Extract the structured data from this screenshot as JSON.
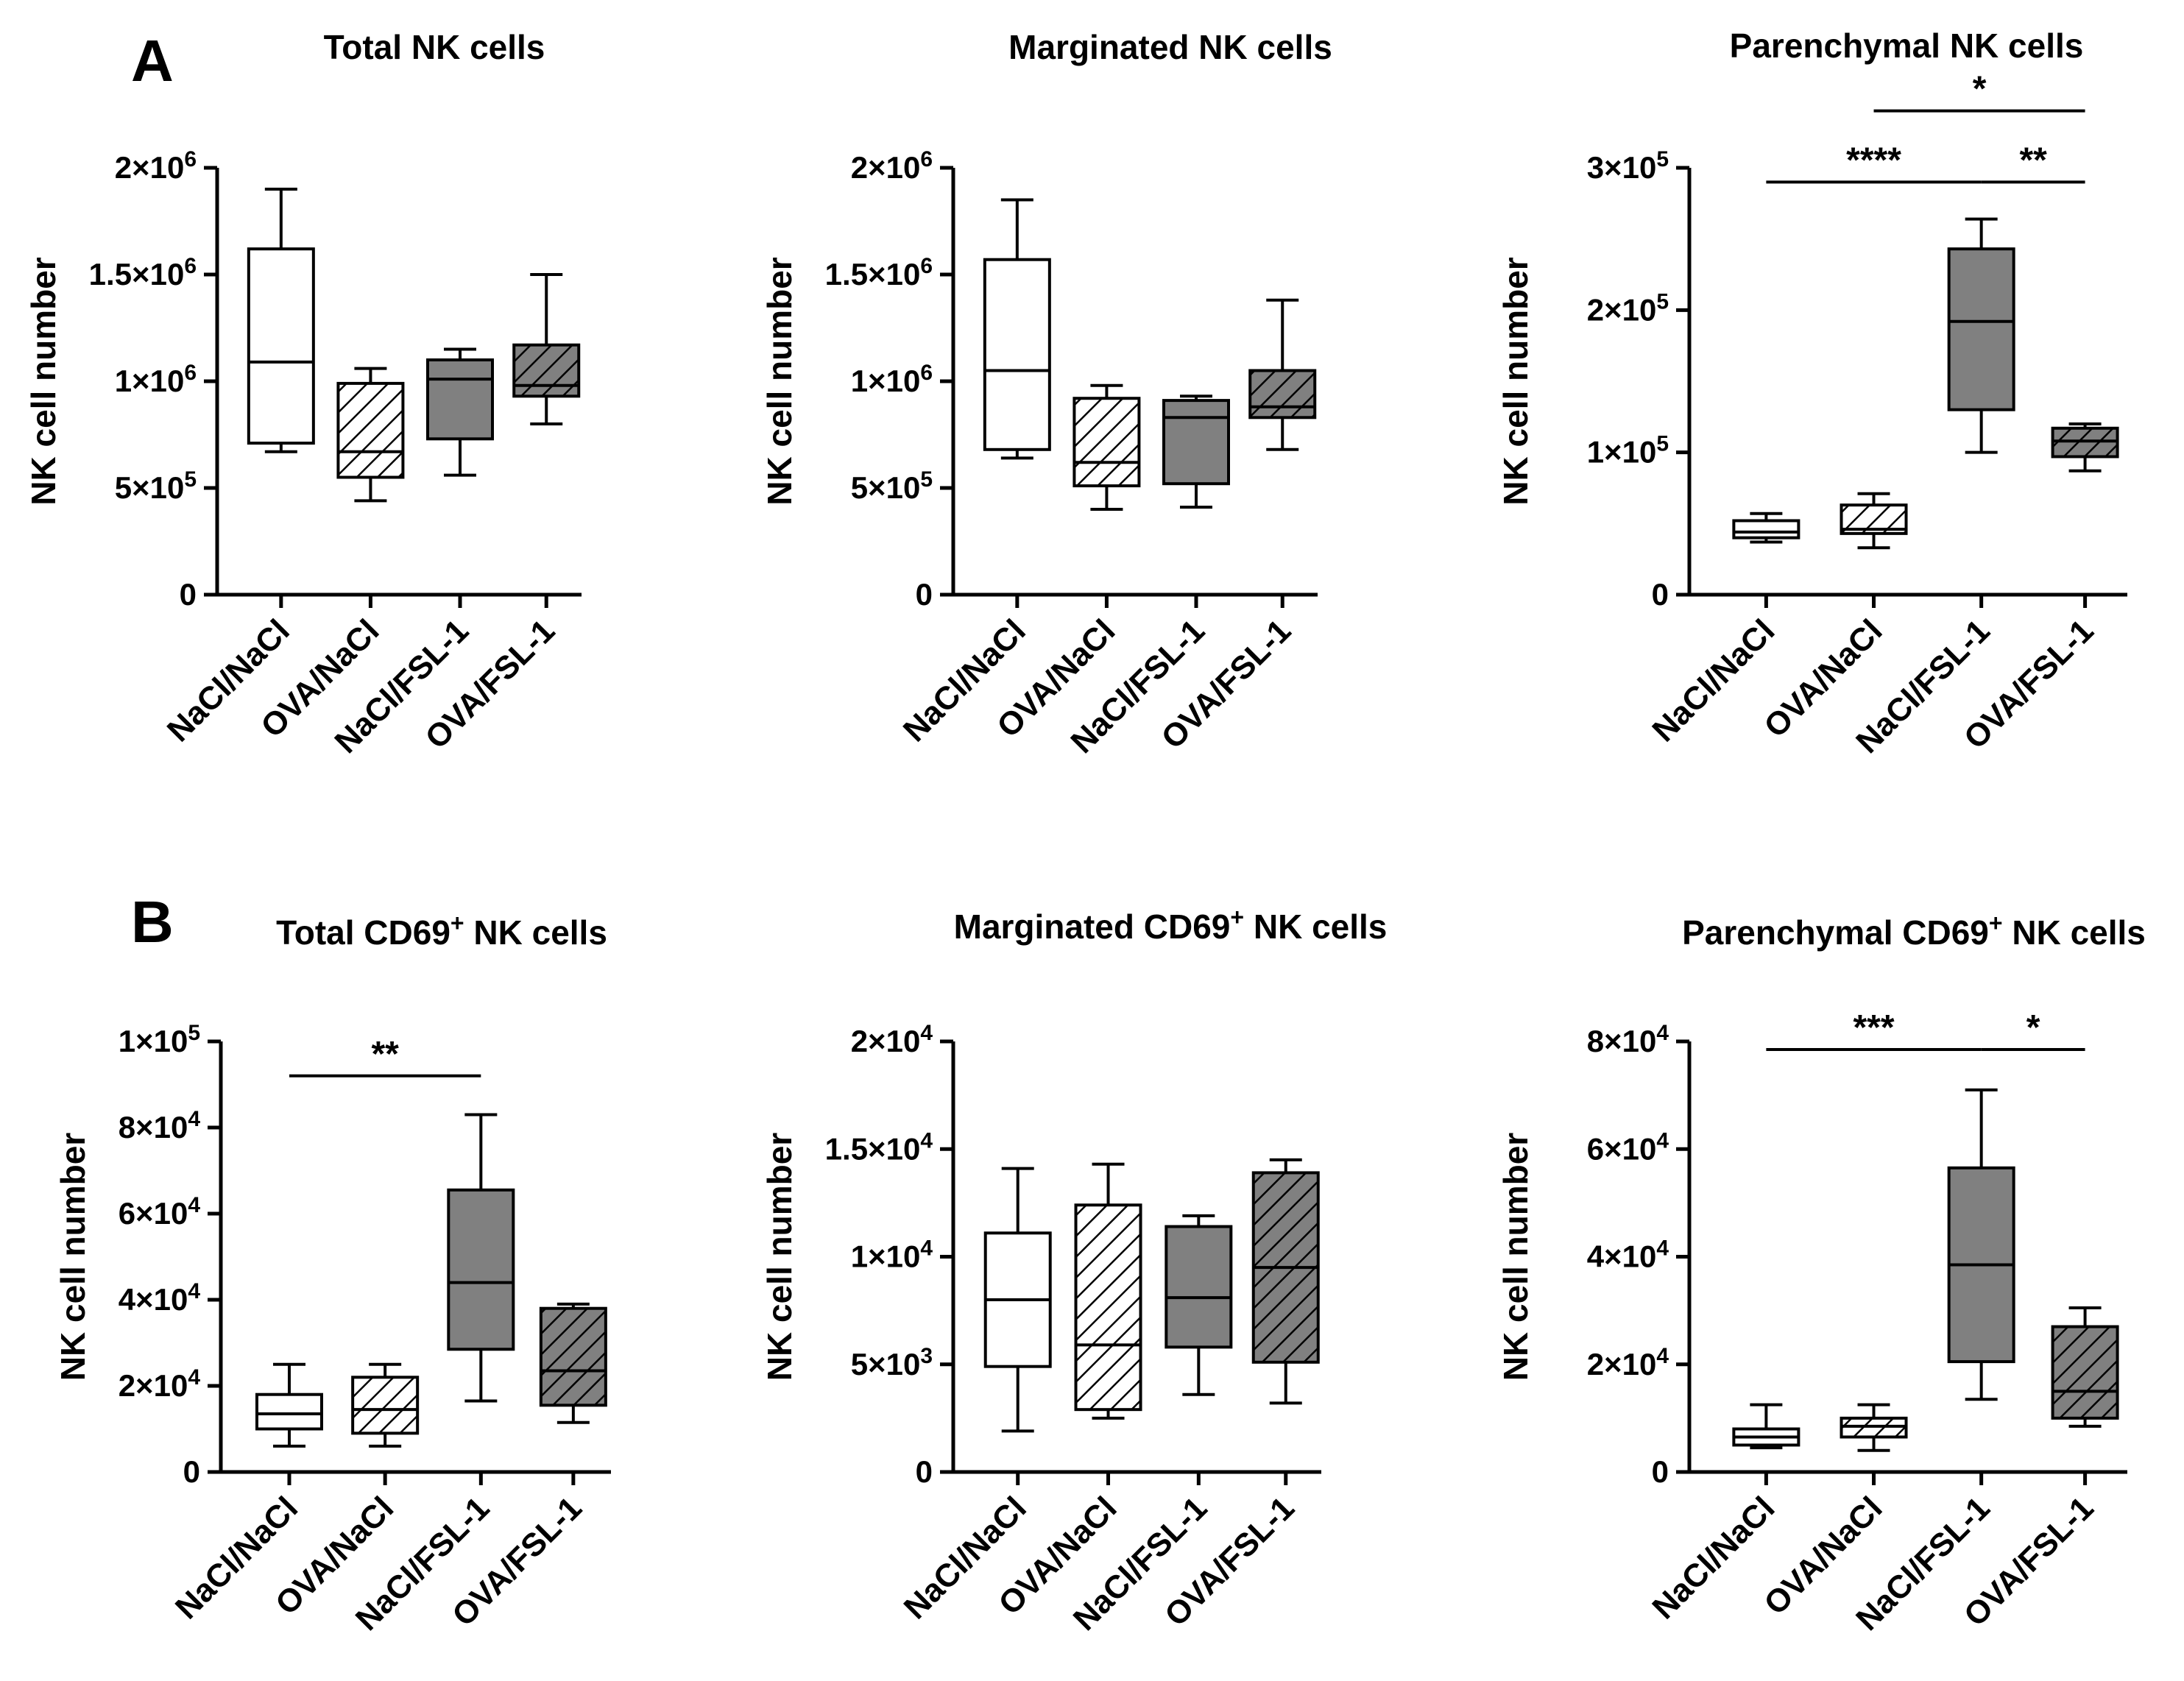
{
  "panel_labels": [
    "A",
    "B"
  ],
  "chart_data": [
    {
      "panel": "A",
      "type": "box",
      "title": "Total NK cells",
      "ylabel": "NK cell number",
      "ylim": [
        0,
        2000000
      ],
      "yticks": [
        {
          "value": 0,
          "base": "0",
          "exp": ""
        },
        {
          "value": 500000,
          "base": "5×10",
          "exp": "5"
        },
        {
          "value": 1000000,
          "base": "1×10",
          "exp": "6"
        },
        {
          "value": 1500000,
          "base": "1.5×10",
          "exp": "6"
        },
        {
          "value": 2000000,
          "base": "2×10",
          "exp": "6"
        }
      ],
      "categories": [
        "NaCl/NaCl",
        "OVA/NaCl",
        "NaCl/FSL-1",
        "OVA/FSL-1"
      ],
      "boxes": [
        {
          "min": 670000,
          "q1": 710000,
          "median": 1090000,
          "q3": 1620000,
          "max": 1900000
        },
        {
          "min": 440000,
          "q1": 550000,
          "median": 670000,
          "q3": 990000,
          "max": 1060000
        },
        {
          "min": 560000,
          "q1": 730000,
          "median": 1010000,
          "q3": 1100000,
          "max": 1150000
        },
        {
          "min": 800000,
          "q1": 930000,
          "median": 980000,
          "q3": 1170000,
          "max": 1500000
        }
      ],
      "significance": []
    },
    {
      "panel": "A",
      "type": "box",
      "title": "Marginated NK cells",
      "ylabel": "NK cell number",
      "ylim": [
        0,
        2000000
      ],
      "yticks": [
        {
          "value": 0,
          "base": "0",
          "exp": ""
        },
        {
          "value": 500000,
          "base": "5×10",
          "exp": "5"
        },
        {
          "value": 1000000,
          "base": "1×10",
          "exp": "6"
        },
        {
          "value": 1500000,
          "base": "1.5×10",
          "exp": "6"
        },
        {
          "value": 2000000,
          "base": "2×10",
          "exp": "6"
        }
      ],
      "categories": [
        "NaCl/NaCl",
        "OVA/NaCl",
        "NaCl/FSL-1",
        "OVA/FSL-1"
      ],
      "boxes": [
        {
          "min": 640000,
          "q1": 680000,
          "median": 1050000,
          "q3": 1570000,
          "max": 1850000
        },
        {
          "min": 400000,
          "q1": 510000,
          "median": 620000,
          "q3": 920000,
          "max": 980000
        },
        {
          "min": 410000,
          "q1": 520000,
          "median": 830000,
          "q3": 910000,
          "max": 930000
        },
        {
          "min": 680000,
          "q1": 830000,
          "median": 880000,
          "q3": 1050000,
          "max": 1380000
        }
      ],
      "significance": []
    },
    {
      "panel": "A",
      "type": "box",
      "title": "Parenchymal NK cells",
      "ylabel": "NK cell number",
      "ylim": [
        0,
        300000
      ],
      "yticks": [
        {
          "value": 0,
          "base": "0",
          "exp": ""
        },
        {
          "value": 100000,
          "base": "1×10",
          "exp": "5"
        },
        {
          "value": 200000,
          "base": "2×10",
          "exp": "5"
        },
        {
          "value": 300000,
          "base": "3×10",
          "exp": "5"
        }
      ],
      "categories": [
        "NaCl/NaCl",
        "OVA/NaCl",
        "NaCl/FSL-1",
        "OVA/FSL-1"
      ],
      "boxes": [
        {
          "min": 37000,
          "q1": 40000,
          "median": 44000,
          "q3": 52000,
          "max": 57000
        },
        {
          "min": 33000,
          "q1": 43000,
          "median": 46000,
          "q3": 63000,
          "max": 71000
        },
        {
          "min": 100000,
          "q1": 130000,
          "median": 192000,
          "q3": 243000,
          "max": 264000
        },
        {
          "min": 87000,
          "q1": 97000,
          "median": 108000,
          "q3": 117000,
          "max": 120000
        }
      ],
      "significance": [
        {
          "from": 0,
          "to": 2,
          "y": 290000,
          "label": "****"
        },
        {
          "from": 2,
          "to": 3,
          "y": 290000,
          "label": "**"
        },
        {
          "from": 1,
          "to": 3,
          "y": 340000,
          "label": "*"
        }
      ]
    },
    {
      "panel": "B",
      "type": "box",
      "title": "Total CD69",
      "title_sup": "+",
      "title_after": " NK cells",
      "ylabel": "NK cell number",
      "ylim": [
        0,
        100000
      ],
      "yticks": [
        {
          "value": 0,
          "base": "0",
          "exp": ""
        },
        {
          "value": 20000,
          "base": "2×10",
          "exp": "4"
        },
        {
          "value": 40000,
          "base": "4×10",
          "exp": "4"
        },
        {
          "value": 60000,
          "base": "6×10",
          "exp": "4"
        },
        {
          "value": 80000,
          "base": "8×10",
          "exp": "4"
        },
        {
          "value": 100000,
          "base": "1×10",
          "exp": "5"
        }
      ],
      "categories": [
        "NaCl/NaCl",
        "OVA/NaCl",
        "NaCl/FSL-1",
        "OVA/FSL-1"
      ],
      "boxes": [
        {
          "min": 6000,
          "q1": 10000,
          "median": 13500,
          "q3": 18000,
          "max": 25000
        },
        {
          "min": 6000,
          "q1": 9000,
          "median": 14500,
          "q3": 22000,
          "max": 25000
        },
        {
          "min": 16500,
          "q1": 28500,
          "median": 44000,
          "q3": 65500,
          "max": 83000
        },
        {
          "min": 11500,
          "q1": 15500,
          "median": 23500,
          "q3": 38000,
          "max": 39000
        }
      ],
      "significance": [
        {
          "from": 0,
          "to": 2,
          "y": 92000,
          "label": "**"
        }
      ]
    },
    {
      "panel": "B",
      "type": "box",
      "title": "Marginated CD69",
      "title_sup": "+",
      "title_after": " NK cells",
      "ylabel": "NK cell number",
      "ylim": [
        0,
        20000
      ],
      "yticks": [
        {
          "value": 0,
          "base": "0",
          "exp": ""
        },
        {
          "value": 5000,
          "base": "5×10",
          "exp": "3"
        },
        {
          "value": 10000,
          "base": "1×10",
          "exp": "4"
        },
        {
          "value": 15000,
          "base": "1.5×10",
          "exp": "4"
        },
        {
          "value": 20000,
          "base": "2×10",
          "exp": "4"
        }
      ],
      "categories": [
        "NaCl/NaCl",
        "OVA/NaCl",
        "NaCl/FSL-1",
        "OVA/FSL-1"
      ],
      "boxes": [
        {
          "min": 1900,
          "q1": 4900,
          "median": 8000,
          "q3": 11100,
          "max": 14100
        },
        {
          "min": 2500,
          "q1": 2900,
          "median": 5900,
          "q3": 12400,
          "max": 14300
        },
        {
          "min": 3600,
          "q1": 5800,
          "median": 8100,
          "q3": 11400,
          "max": 11900
        },
        {
          "min": 3200,
          "q1": 5100,
          "median": 9500,
          "q3": 13900,
          "max": 14500
        }
      ],
      "significance": []
    },
    {
      "panel": "B",
      "type": "box",
      "title": "Parenchymal CD69",
      "title_sup": "+",
      "title_after": " NK cells",
      "ylabel": "NK cell number",
      "ylim": [
        0,
        80000
      ],
      "yticks": [
        {
          "value": 0,
          "base": "0",
          "exp": ""
        },
        {
          "value": 20000,
          "base": "2×10",
          "exp": "4"
        },
        {
          "value": 40000,
          "base": "4×10",
          "exp": "4"
        },
        {
          "value": 60000,
          "base": "6×10",
          "exp": "4"
        },
        {
          "value": 80000,
          "base": "8×10",
          "exp": "4"
        }
      ],
      "categories": [
        "NaCl/NaCl",
        "OVA/NaCl",
        "NaCl/FSL-1",
        "OVA/FSL-1"
      ],
      "boxes": [
        {
          "min": 4500,
          "q1": 5000,
          "median": 6500,
          "q3": 8000,
          "max": 12500
        },
        {
          "min": 4000,
          "q1": 6500,
          "median": 8500,
          "q3": 10000,
          "max": 12500
        },
        {
          "min": 13500,
          "q1": 20500,
          "median": 38500,
          "q3": 56500,
          "max": 71000
        },
        {
          "min": 8500,
          "q1": 10000,
          "median": 15000,
          "q3": 27000,
          "max": 30500
        }
      ],
      "significance": [
        {
          "from": 0,
          "to": 2,
          "y": 78500,
          "label": "***"
        },
        {
          "from": 2,
          "to": 3,
          "y": 78500,
          "label": "*"
        }
      ]
    }
  ]
}
